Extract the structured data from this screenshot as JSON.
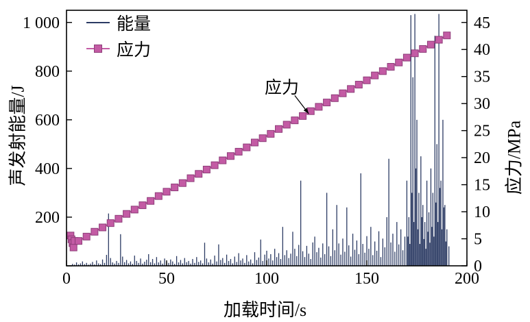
{
  "chart_data": {
    "type": "mixed",
    "title": "",
    "xlabel": "加载时间/s",
    "ylabel_left": "声发射能量/J",
    "ylabel_right": "应力/MPa",
    "xlim": [
      0,
      200
    ],
    "ylim_left": [
      0,
      1050
    ],
    "ylim_right": [
      0,
      47.25
    ],
    "xticks": [
      0,
      50,
      100,
      150,
      200
    ],
    "xtick_labels": [
      "0",
      "50",
      "100",
      "150",
      "200"
    ],
    "yticks_left": [
      0,
      200,
      400,
      600,
      800,
      1000
    ],
    "ytick_labels_left": [
      "",
      "200",
      "400",
      "600",
      "800",
      "1 000"
    ],
    "yticks_right": [
      0,
      5,
      10,
      15,
      20,
      25,
      30,
      35,
      40,
      45
    ],
    "ytick_labels_right": [
      "0",
      "5",
      "10",
      "15",
      "20",
      "25",
      "30",
      "35",
      "40",
      "45"
    ],
    "grid": false,
    "legend_position": "top-left",
    "legend": [
      {
        "label": "能量",
        "type": "line",
        "color": "#2b3a63"
      },
      {
        "label": "应力",
        "type": "line-marker",
        "color": "#c35ba4"
      }
    ],
    "annotation": {
      "text": "应力",
      "arrow_from_x": 114,
      "arrow_from_y": 700,
      "arrow_to_x": 121,
      "arrow_to_y": 625
    },
    "series": {
      "energy": {
        "name": "能量",
        "type": "stem",
        "axis": "left",
        "color": "#2b3a63",
        "points": [
          [
            3,
            8
          ],
          [
            4,
            5
          ],
          [
            5,
            14
          ],
          [
            6,
            6
          ],
          [
            7,
            10
          ],
          [
            8,
            18
          ],
          [
            9,
            7
          ],
          [
            10,
            12
          ],
          [
            11,
            5
          ],
          [
            12,
            9
          ],
          [
            13,
            16
          ],
          [
            14,
            6
          ],
          [
            15,
            22
          ],
          [
            16,
            10
          ],
          [
            17,
            7
          ],
          [
            18,
            26
          ],
          [
            19,
            12
          ],
          [
            20,
            45
          ],
          [
            21,
            215
          ],
          [
            22,
            32
          ],
          [
            23,
            14
          ],
          [
            24,
            9
          ],
          [
            25,
            20
          ],
          [
            26,
            12
          ],
          [
            27,
            130
          ],
          [
            28,
            38
          ],
          [
            29,
            15
          ],
          [
            30,
            24
          ],
          [
            31,
            10
          ],
          [
            32,
            18
          ],
          [
            33,
            8
          ],
          [
            34,
            42
          ],
          [
            35,
            20
          ],
          [
            36,
            12
          ],
          [
            37,
            30
          ],
          [
            38,
            9
          ],
          [
            39,
            17
          ],
          [
            40,
            25
          ],
          [
            41,
            48
          ],
          [
            42,
            15
          ],
          [
            43,
            28
          ],
          [
            44,
            10
          ],
          [
            45,
            36
          ],
          [
            46,
            14
          ],
          [
            47,
            22
          ],
          [
            48,
            9
          ],
          [
            49,
            30
          ],
          [
            50,
            16
          ],
          [
            51,
            12
          ],
          [
            52,
            26
          ],
          [
            53,
            18
          ],
          [
            54,
            8
          ],
          [
            55,
            40
          ],
          [
            56,
            14
          ],
          [
            57,
            24
          ],
          [
            58,
            10
          ],
          [
            59,
            32
          ],
          [
            60,
            15
          ],
          [
            61,
            20
          ],
          [
            62,
            9
          ],
          [
            63,
            28
          ],
          [
            64,
            12
          ],
          [
            65,
            36
          ],
          [
            66,
            16
          ],
          [
            67,
            22
          ],
          [
            68,
            10
          ],
          [
            69,
            95
          ],
          [
            70,
            30
          ],
          [
            71,
            14
          ],
          [
            72,
            26
          ],
          [
            73,
            9
          ],
          [
            74,
            42
          ],
          [
            75,
            18
          ],
          [
            76,
            88
          ],
          [
            77,
            24
          ],
          [
            78,
            32
          ],
          [
            79,
            12
          ],
          [
            80,
            46
          ],
          [
            81,
            20
          ],
          [
            82,
            28
          ],
          [
            83,
            10
          ],
          [
            84,
            38
          ],
          [
            85,
            16
          ],
          [
            86,
            52
          ],
          [
            87,
            22
          ],
          [
            88,
            30
          ],
          [
            89,
            12
          ],
          [
            90,
            44
          ],
          [
            91,
            18
          ],
          [
            92,
            26
          ],
          [
            93,
            10
          ],
          [
            94,
            56
          ],
          [
            95,
            24
          ],
          [
            96,
            34
          ],
          [
            97,
            108
          ],
          [
            98,
            20
          ],
          [
            99,
            46
          ],
          [
            100,
            62
          ],
          [
            101,
            30
          ],
          [
            102,
            48
          ],
          [
            103,
            22
          ],
          [
            104,
            70
          ],
          [
            105,
            36
          ],
          [
            106,
            52
          ],
          [
            107,
            28
          ],
          [
            108,
            160
          ],
          [
            109,
            44
          ],
          [
            110,
            64
          ],
          [
            111,
            32
          ],
          [
            112,
            50
          ],
          [
            113,
            140
          ],
          [
            114,
            70
          ],
          [
            115,
            40
          ],
          [
            116,
            86
          ],
          [
            117,
            350
          ],
          [
            118,
            60
          ],
          [
            119,
            36
          ],
          [
            120,
            82
          ],
          [
            121,
            50
          ],
          [
            122,
            28
          ],
          [
            123,
            96
          ],
          [
            124,
            120
          ],
          [
            125,
            56
          ],
          [
            126,
            74
          ],
          [
            127,
            34
          ],
          [
            128,
            92
          ],
          [
            129,
            48
          ],
          [
            130,
            300
          ],
          [
            131,
            80
          ],
          [
            132,
            40
          ],
          [
            133,
            150
          ],
          [
            134,
            64
          ],
          [
            135,
            250
          ],
          [
            136,
            92
          ],
          [
            137,
            46
          ],
          [
            138,
            112
          ],
          [
            139,
            58
          ],
          [
            140,
            240
          ],
          [
            141,
            84
          ],
          [
            142,
            38
          ],
          [
            143,
            132
          ],
          [
            144,
            66
          ],
          [
            145,
            104
          ],
          [
            146,
            48
          ],
          [
            147,
            380
          ],
          [
            148,
            90
          ],
          [
            149,
            54
          ],
          [
            150,
            122
          ],
          [
            151,
            70
          ],
          [
            152,
            160
          ],
          [
            153,
            44
          ],
          [
            154,
            100
          ],
          [
            155,
            62
          ],
          [
            156,
            142
          ],
          [
            157,
            36
          ],
          [
            158,
            112
          ],
          [
            159,
            76
          ],
          [
            160,
            200
          ],
          [
            161,
            440
          ],
          [
            162,
            96
          ],
          [
            163,
            132
          ],
          [
            164,
            58
          ],
          [
            165,
            180
          ],
          [
            166,
            88
          ],
          [
            167,
            150
          ],
          [
            168,
            64
          ],
          [
            169,
            120
          ],
          [
            170,
            350
          ],
          [
            170.5,
            120
          ],
          [
            171,
            200
          ],
          [
            171.5,
            90
          ],
          [
            172,
            1030
          ],
          [
            172.5,
            300
          ],
          [
            173,
            775
          ],
          [
            173.5,
            180
          ],
          [
            174,
            1035
          ],
          [
            174.5,
            400
          ],
          [
            175,
            600
          ],
          [
            175.5,
            150
          ],
          [
            176,
            300
          ],
          [
            176.5,
            90
          ],
          [
            177,
            450
          ],
          [
            177.5,
            200
          ],
          [
            178,
            250
          ],
          [
            178.5,
            110
          ],
          [
            179,
            180
          ],
          [
            179.5,
            70
          ],
          [
            180,
            350
          ],
          [
            180.5,
            140
          ],
          [
            181,
            220
          ],
          [
            181.5,
            95
          ],
          [
            182,
            400
          ],
          [
            182.5,
            160
          ],
          [
            183,
            300
          ],
          [
            183.5,
            120
          ],
          [
            184,
            945
          ],
          [
            184.5,
            260
          ],
          [
            185,
            500
          ],
          [
            185.5,
            180
          ],
          [
            186,
            1035
          ],
          [
            186.5,
            320
          ],
          [
            187,
            350
          ],
          [
            187.5,
            150
          ],
          [
            188,
            600
          ],
          [
            188.5,
            240
          ],
          [
            189,
            250
          ],
          [
            189.5,
            100
          ],
          [
            190,
            150
          ],
          [
            191,
            80
          ]
        ]
      },
      "stress": {
        "name": "应力",
        "type": "line-marker",
        "axis": "right",
        "color": "#c35ba4",
        "edge_color": "#8e3d79",
        "marker": "square",
        "points": [
          [
            2,
            5.6
          ],
          [
            2.5,
            4.9
          ],
          [
            3,
            4.2
          ],
          [
            3.5,
            3.4
          ],
          [
            4,
            4.6
          ],
          [
            6,
            4.6
          ],
          [
            10,
            5.4
          ],
          [
            14,
            6.3
          ],
          [
            18,
            7.1
          ],
          [
            22,
            7.9
          ],
          [
            26,
            8.7
          ],
          [
            30,
            9.6
          ],
          [
            34,
            10.4
          ],
          [
            38,
            11.2
          ],
          [
            42,
            12.0
          ],
          [
            46,
            12.9
          ],
          [
            50,
            13.7
          ],
          [
            54,
            14.5
          ],
          [
            58,
            15.3
          ],
          [
            62,
            16.2
          ],
          [
            66,
            17.0
          ],
          [
            70,
            17.8
          ],
          [
            74,
            18.6
          ],
          [
            78,
            19.5
          ],
          [
            82,
            20.3
          ],
          [
            86,
            21.1
          ],
          [
            90,
            21.9
          ],
          [
            94,
            22.8
          ],
          [
            98,
            23.6
          ],
          [
            102,
            24.4
          ],
          [
            106,
            25.3
          ],
          [
            110,
            26.1
          ],
          [
            114,
            26.9
          ],
          [
            118,
            27.7
          ],
          [
            122,
            28.6
          ],
          [
            126,
            29.4
          ],
          [
            130,
            30.2
          ],
          [
            134,
            31.0
          ],
          [
            138,
            31.9
          ],
          [
            142,
            32.7
          ],
          [
            146,
            33.5
          ],
          [
            150,
            34.3
          ],
          [
            154,
            35.2
          ],
          [
            158,
            36.0
          ],
          [
            162,
            36.8
          ],
          [
            166,
            37.6
          ],
          [
            170,
            38.5
          ],
          [
            174,
            39.3
          ],
          [
            178,
            40.1
          ],
          [
            182,
            40.9
          ],
          [
            186,
            41.8
          ],
          [
            190,
            42.6
          ]
        ]
      }
    }
  }
}
